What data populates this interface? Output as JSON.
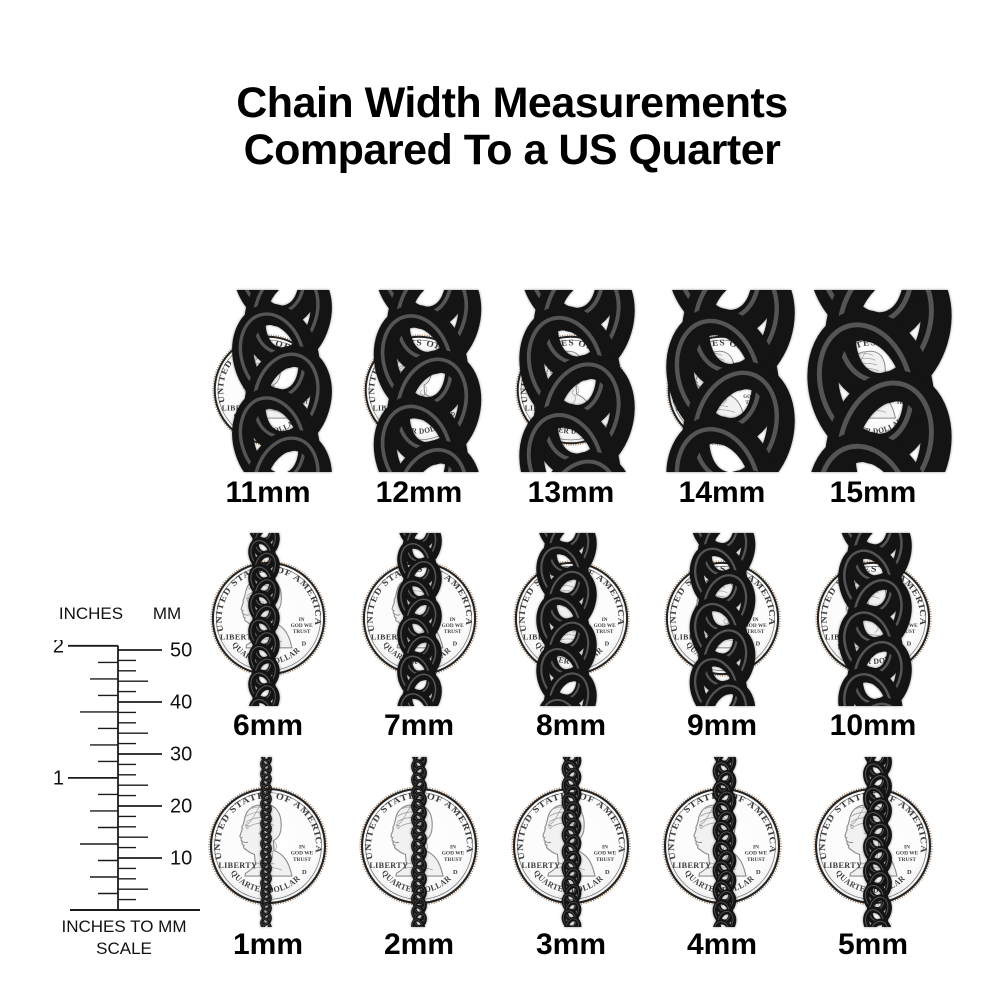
{
  "title": {
    "line1": "Chain Width Measurements",
    "line2": "Compared To a US Quarter"
  },
  "coin": {
    "top_text": "UNITED STATES OF AMERICA",
    "liberty": "LIBERTY",
    "motto_line1": "IN",
    "motto_line2": "GOD WE",
    "motto_line3": "TRUST",
    "mint_mark": "D",
    "bottom_text": "QUARTER DOLLAR"
  },
  "grid": {
    "rows": [
      {
        "labels": [
          "11mm",
          "12mm",
          "13mm",
          "14mm",
          "15mm"
        ]
      },
      {
        "labels": [
          "6mm",
          "7mm",
          "8mm",
          "9mm",
          "10mm"
        ]
      },
      {
        "labels": [
          "1mm",
          "2mm",
          "3mm",
          "4mm",
          "5mm"
        ]
      }
    ]
  },
  "ruler": {
    "inches_header": "INCHES",
    "mm_header": "MM",
    "inch_labels": [
      "2",
      "1"
    ],
    "mm_labels": [
      "50",
      "40",
      "30",
      "20",
      "10"
    ],
    "caption_line1": "INCHES TO MM",
    "caption_line2": "SCALE"
  },
  "colors": {
    "background": "#ffffff",
    "ink": "#000000",
    "chain": "#141414",
    "chain_highlight": "#5c5c5c",
    "coin_line": "#3d3d3d",
    "coin_ring": "#242424",
    "rim_sepia": "#a88b6f"
  }
}
